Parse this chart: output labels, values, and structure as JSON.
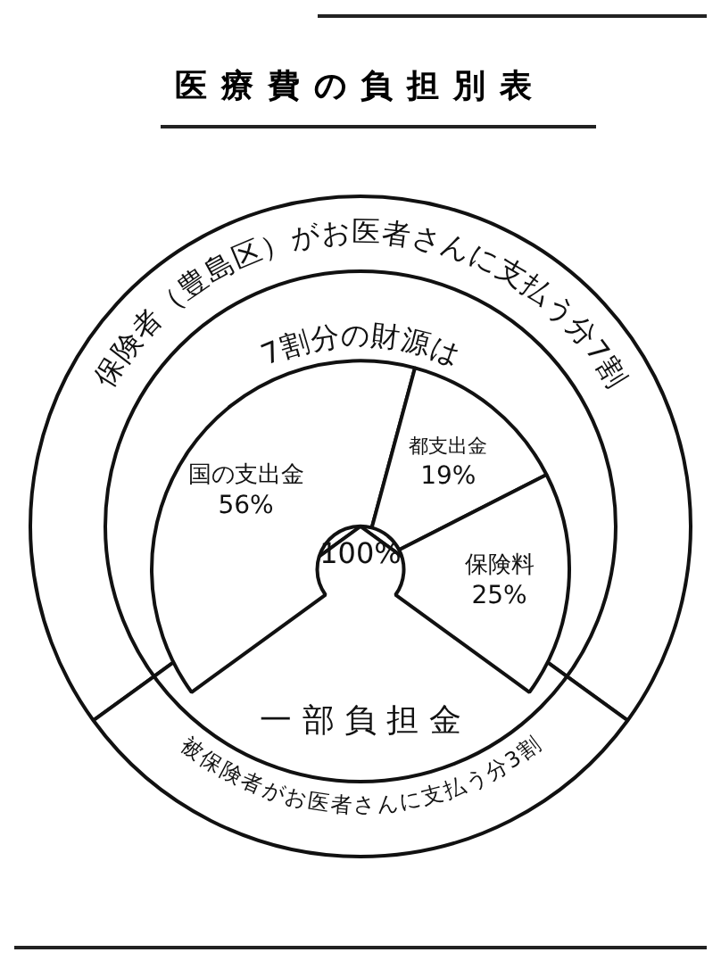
{
  "chart_data": [
    {
      "type": "pie",
      "title": "医療費の負担別表",
      "categories": [
        "保険者（豊島区）がお医者さんに支払う分7割",
        "被保険者がお医者さんに支払う分3割"
      ],
      "values": [
        7,
        3
      ],
      "colors": [
        "#ffffff",
        "#ffffff"
      ],
      "annotations": [
        "一部負担金"
      ]
    },
    {
      "type": "donut",
      "title": "7割分の財源は",
      "categories": [
        "国の支出金",
        "都支出金",
        "保険料"
      ],
      "values": [
        56,
        19,
        25
      ],
      "colors": [
        "#ffffff",
        "#ffffff",
        "#ffffff"
      ],
      "value_labels": [
        "56%",
        "19%",
        "25%"
      ],
      "annotations": [
        "100%"
      ]
    }
  ]
}
